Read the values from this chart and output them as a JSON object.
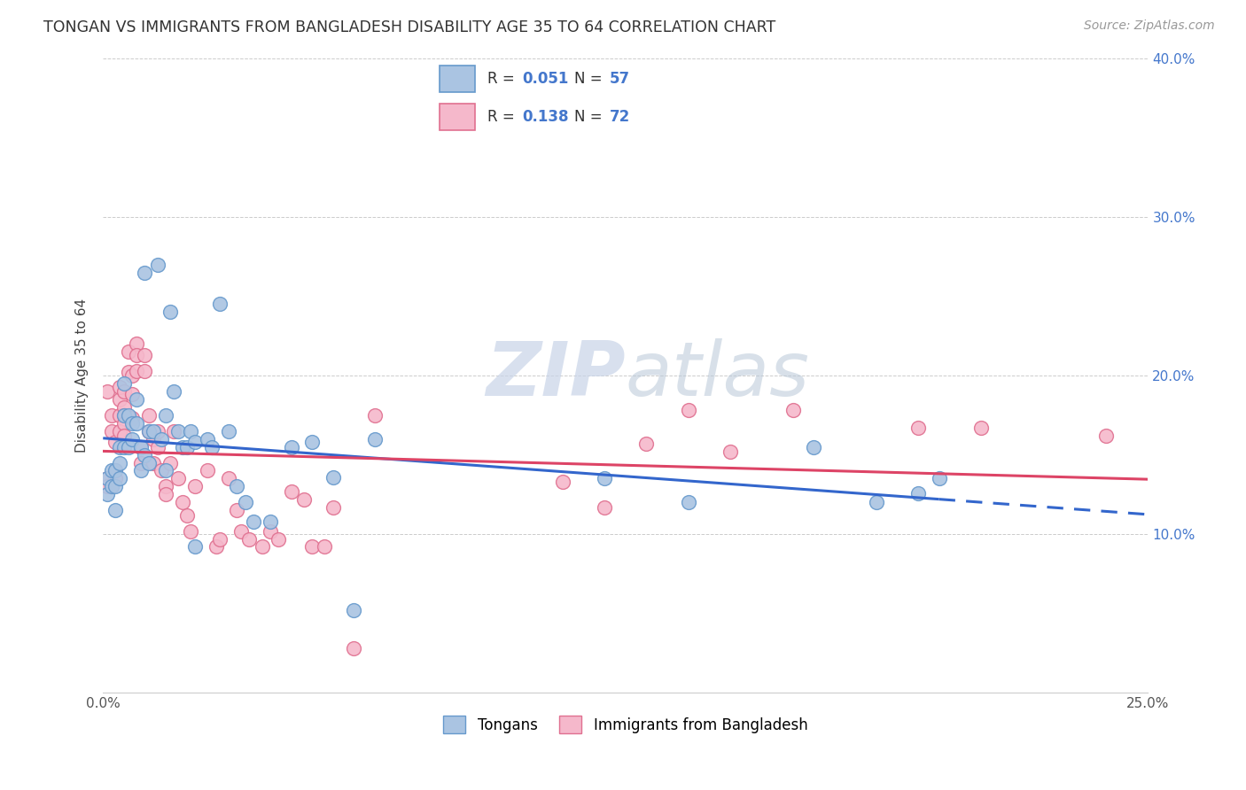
{
  "title": "TONGAN VS IMMIGRANTS FROM BANGLADESH DISABILITY AGE 35 TO 64 CORRELATION CHART",
  "source": "Source: ZipAtlas.com",
  "ylabel": "Disability Age 35 to 64",
  "x_min": 0.0,
  "x_max": 0.25,
  "y_min": 0.0,
  "y_max": 0.4,
  "x_ticks": [
    0.0,
    0.05,
    0.1,
    0.15,
    0.2,
    0.25
  ],
  "x_tick_labels": [
    "0.0%",
    "",
    "",
    "",
    "",
    "25.0%"
  ],
  "y_ticks": [
    0.0,
    0.1,
    0.2,
    0.3,
    0.4
  ],
  "y_tick_labels_right": [
    "",
    "10.0%",
    "20.0%",
    "30.0%",
    "40.0%"
  ],
  "series1_label": "Tongans",
  "series1_R": "0.051",
  "series1_N": "57",
  "series1_color": "#aac4e2",
  "series1_edge_color": "#6699cc",
  "series2_label": "Immigrants from Bangladesh",
  "series2_R": "0.138",
  "series2_N": "72",
  "series2_color": "#f5b8cb",
  "series2_edge_color": "#e07090",
  "trend1_color": "#3366cc",
  "trend2_color": "#dd4466",
  "background_color": "#ffffff",
  "grid_color": "#cccccc",
  "title_color": "#333333",
  "legend_color": "#4477cc",
  "watermark_color": "#d0d8e8",
  "series1_x": [
    0.001,
    0.001,
    0.002,
    0.002,
    0.003,
    0.003,
    0.003,
    0.004,
    0.004,
    0.004,
    0.005,
    0.005,
    0.005,
    0.006,
    0.006,
    0.007,
    0.007,
    0.008,
    0.008,
    0.009,
    0.009,
    0.01,
    0.01,
    0.011,
    0.011,
    0.012,
    0.013,
    0.014,
    0.015,
    0.015,
    0.016,
    0.017,
    0.018,
    0.019,
    0.02,
    0.021,
    0.022,
    0.022,
    0.025,
    0.026,
    0.028,
    0.03,
    0.032,
    0.034,
    0.036,
    0.04,
    0.045,
    0.05,
    0.055,
    0.06,
    0.065,
    0.12,
    0.14,
    0.17,
    0.185,
    0.195,
    0.2
  ],
  "series1_y": [
    0.135,
    0.125,
    0.14,
    0.13,
    0.14,
    0.13,
    0.115,
    0.145,
    0.135,
    0.155,
    0.175,
    0.195,
    0.155,
    0.175,
    0.155,
    0.17,
    0.16,
    0.185,
    0.17,
    0.155,
    0.14,
    0.265,
    0.15,
    0.165,
    0.145,
    0.165,
    0.27,
    0.16,
    0.175,
    0.14,
    0.24,
    0.19,
    0.165,
    0.155,
    0.155,
    0.165,
    0.158,
    0.092,
    0.16,
    0.155,
    0.245,
    0.165,
    0.13,
    0.12,
    0.108,
    0.108,
    0.155,
    0.158,
    0.136,
    0.052,
    0.16,
    0.135,
    0.12,
    0.155,
    0.12,
    0.126,
    0.135
  ],
  "series2_x": [
    0.001,
    0.001,
    0.001,
    0.002,
    0.002,
    0.002,
    0.003,
    0.003,
    0.003,
    0.004,
    0.004,
    0.004,
    0.004,
    0.005,
    0.005,
    0.005,
    0.005,
    0.005,
    0.006,
    0.006,
    0.007,
    0.007,
    0.007,
    0.008,
    0.008,
    0.008,
    0.009,
    0.009,
    0.01,
    0.01,
    0.011,
    0.011,
    0.012,
    0.012,
    0.013,
    0.013,
    0.014,
    0.015,
    0.015,
    0.016,
    0.017,
    0.018,
    0.019,
    0.02,
    0.021,
    0.022,
    0.025,
    0.027,
    0.028,
    0.03,
    0.032,
    0.033,
    0.035,
    0.038,
    0.04,
    0.042,
    0.045,
    0.048,
    0.05,
    0.053,
    0.055,
    0.06,
    0.065,
    0.11,
    0.12,
    0.13,
    0.14,
    0.15,
    0.165,
    0.195,
    0.21,
    0.24
  ],
  "series2_y": [
    0.135,
    0.19,
    0.13,
    0.175,
    0.165,
    0.13,
    0.135,
    0.14,
    0.158,
    0.185,
    0.193,
    0.175,
    0.165,
    0.19,
    0.18,
    0.175,
    0.17,
    0.162,
    0.215,
    0.202,
    0.2,
    0.188,
    0.173,
    0.22,
    0.213,
    0.203,
    0.155,
    0.145,
    0.213,
    0.203,
    0.175,
    0.165,
    0.16,
    0.145,
    0.165,
    0.155,
    0.14,
    0.13,
    0.125,
    0.145,
    0.165,
    0.135,
    0.12,
    0.112,
    0.102,
    0.13,
    0.14,
    0.092,
    0.097,
    0.135,
    0.115,
    0.102,
    0.097,
    0.092,
    0.102,
    0.097,
    0.127,
    0.122,
    0.092,
    0.092,
    0.117,
    0.028,
    0.175,
    0.133,
    0.117,
    0.157,
    0.178,
    0.152,
    0.178,
    0.167,
    0.167,
    0.162
  ]
}
